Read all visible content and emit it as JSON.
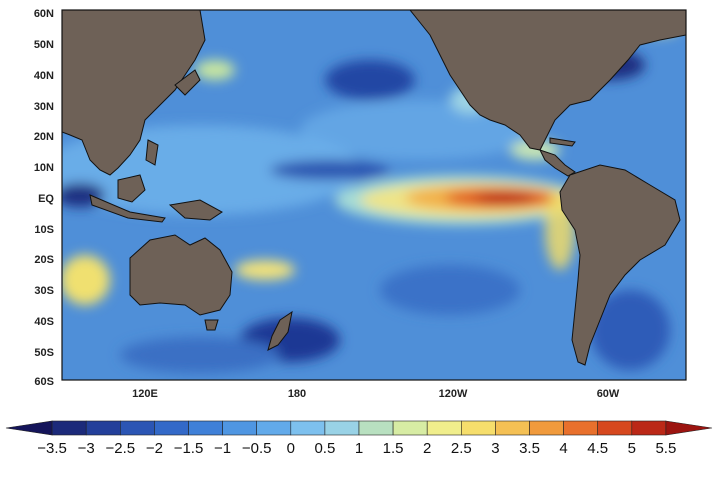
{
  "map": {
    "lat_labels": [
      "60N",
      "50N",
      "40N",
      "30N",
      "20N",
      "10N",
      "EQ",
      "10S",
      "20S",
      "30S",
      "40S",
      "50S",
      "60S"
    ],
    "lon_labels": [
      "120E",
      "180",
      "120W",
      "60W"
    ]
  },
  "colorbar": {
    "labels": [
      "−3.5",
      "−3",
      "−2.5",
      "−2",
      "−1.5",
      "−1",
      "−0.5",
      "0",
      "0.5",
      "1",
      "1.5",
      "2",
      "2.5",
      "3",
      "3.5",
      "4",
      "4.5",
      "5",
      "5.5"
    ],
    "colors": [
      "#14145a",
      "#1c2a7a",
      "#233f9a",
      "#2b55b4",
      "#3369c8",
      "#3f80d8",
      "#4f96e2",
      "#62aaea",
      "#7dc0ee",
      "#99d2e6",
      "#b8e0c0",
      "#d7eca4",
      "#f0ee8c",
      "#f6de6c",
      "#f4c054",
      "#f09a3c",
      "#e8702c",
      "#d6481e",
      "#bb2817",
      "#9c1410"
    ]
  },
  "palette": {
    "land": "#6e6157",
    "ocean_base": "#4f8fd8"
  }
}
